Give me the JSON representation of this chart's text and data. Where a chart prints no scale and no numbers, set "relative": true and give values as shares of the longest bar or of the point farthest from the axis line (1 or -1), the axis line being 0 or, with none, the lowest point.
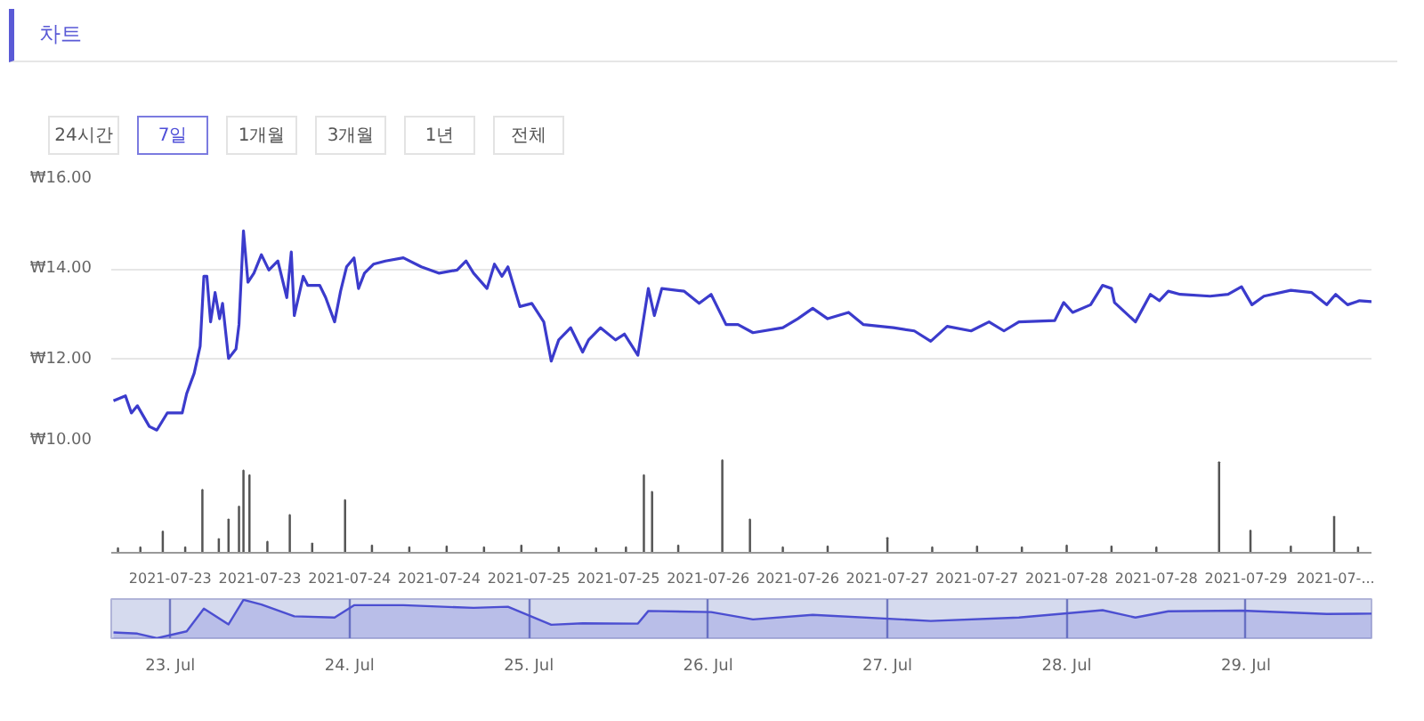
{
  "chart_data": [
    {
      "type": "line",
      "title": "차트",
      "annotations": [
        "24시간",
        "7일",
        "1개월",
        "3개월",
        "1년",
        "전체"
      ],
      "color": "#3b3bcc",
      "line_style": "solid",
      "marker": "none",
      "grid": "y",
      "tick_labels": "y",
      "x": [
        "2021-07-22T16:24",
        "2021-07-22T18:00",
        "2021-07-22T18:48",
        "2021-07-22T19:36",
        "2021-07-22T21:12",
        "2021-07-22T22:12",
        "2021-07-22T23:36",
        "2021-07-23T01:36",
        "2021-07-23T02:12",
        "2021-07-23T03:12",
        "2021-07-23T04:00",
        "2021-07-23T04:30",
        "2021-07-23T04:54",
        "2021-07-23T05:24",
        "2021-07-23T06:00",
        "2021-07-23T06:36",
        "2021-07-23T07:00",
        "2021-07-23T07:48",
        "2021-07-23T08:48",
        "2021-07-23T09:12",
        "2021-07-23T09:48",
        "2021-07-23T10:24",
        "2021-07-23T11:12",
        "2021-07-23T12:12",
        "2021-07-23T13:12",
        "2021-07-23T14:24",
        "2021-07-23T15:36",
        "2021-07-23T16:12",
        "2021-07-23T16:36",
        "2021-07-23T17:48",
        "2021-07-23T18:24",
        "2021-07-23T20:00",
        "2021-07-23T20:48",
        "2021-07-23T22:00",
        "2021-07-23T22:48",
        "2021-07-23T23:36",
        "2021-07-24T00:36",
        "2021-07-24T01:12",
        "2021-07-24T02:00",
        "2021-07-24T03:12",
        "2021-07-24T04:48",
        "2021-07-24T07:12",
        "2021-07-24T09:36",
        "2021-07-24T12:00",
        "2021-07-24T14:24",
        "2021-07-24T15:36",
        "2021-07-24T16:36",
        "2021-07-24T18:24",
        "2021-07-24T19:24",
        "2021-07-24T20:24",
        "2021-07-24T21:12",
        "2021-07-24T22:48",
        "2021-07-25T00:24",
        "2021-07-25T02:00",
        "2021-07-25T03:00",
        "2021-07-25T04:00",
        "2021-07-25T05:36",
        "2021-07-25T07:12",
        "2021-07-25T08:00",
        "2021-07-25T09:36",
        "2021-07-25T11:36",
        "2021-07-25T12:48",
        "2021-07-25T14:36",
        "2021-07-25T16:00",
        "2021-07-25T16:48",
        "2021-07-25T17:48",
        "2021-07-25T20:48",
        "2021-07-25T22:48",
        "2021-07-26T00:24",
        "2021-07-26T02:24",
        "2021-07-26T04:00",
        "2021-07-26T06:00",
        "2021-07-26T10:00",
        "2021-07-26T12:00",
        "2021-07-26T14:00",
        "2021-07-26T16:00",
        "2021-07-26T18:48",
        "2021-07-26T20:48",
        "2021-07-27T00:48",
        "2021-07-27T03:36",
        "2021-07-27T05:48",
        "2021-07-27T08:00",
        "2021-07-27T11:12",
        "2021-07-27T13:36",
        "2021-07-27T15:36",
        "2021-07-27T17:36",
        "2021-07-27T22:24",
        "2021-07-27T23:36",
        "2021-07-28T00:48",
        "2021-07-28T03:12",
        "2021-07-28T04:48",
        "2021-07-28T06:00",
        "2021-07-28T06:24",
        "2021-07-28T09:12",
        "2021-07-28T11:12",
        "2021-07-28T12:24",
        "2021-07-28T13:36",
        "2021-07-28T15:12",
        "2021-07-28T19:12",
        "2021-07-28T21:36",
        "2021-07-28T23:24",
        "2021-07-29T00:48",
        "2021-07-29T02:24",
        "2021-07-29T06:00",
        "2021-07-29T08:48",
        "2021-07-29T10:48",
        "2021-07-29T12:00",
        "2021-07-29T13:36",
        "2021-07-29T15:12",
        "2021-07-29T16:48"
      ],
      "values": [
        11.08,
        11.19,
        10.81,
        10.97,
        10.51,
        10.43,
        10.81,
        10.81,
        11.24,
        11.69,
        12.29,
        13.84,
        13.84,
        12.83,
        13.48,
        12.9,
        13.24,
        12.02,
        12.23,
        12.77,
        14.85,
        13.71,
        13.91,
        14.32,
        13.98,
        14.18,
        13.37,
        14.38,
        12.97,
        13.84,
        13.64,
        13.64,
        13.37,
        12.83,
        13.51,
        14.05,
        14.25,
        13.57,
        13.91,
        14.11,
        14.18,
        14.25,
        14.05,
        13.91,
        13.98,
        14.18,
        13.91,
        13.57,
        14.11,
        13.84,
        14.05,
        13.17,
        13.24,
        12.83,
        11.96,
        12.43,
        12.7,
        12.16,
        12.43,
        12.7,
        12.43,
        12.56,
        12.09,
        13.57,
        12.97,
        13.57,
        13.51,
        13.24,
        13.44,
        12.77,
        12.77,
        12.59,
        12.7,
        12.9,
        13.13,
        12.9,
        13.04,
        12.77,
        12.7,
        12.63,
        12.4,
        12.73,
        12.63,
        12.83,
        12.63,
        12.83,
        12.86,
        13.26,
        13.04,
        13.21,
        13.64,
        13.57,
        13.26,
        12.83,
        13.44,
        13.3,
        13.51,
        13.44,
        13.4,
        13.44,
        13.61,
        13.21,
        13.4,
        13.53,
        13.48,
        13.21,
        13.44,
        13.21,
        13.3,
        13.28
      ],
      "xlim": [
        "2021-07-22T16:06",
        "2021-07-29T16:48"
      ],
      "ylim": [
        10,
        16
      ],
      "yticks": [
        {
          "value": 10,
          "label": "₩10.00"
        },
        {
          "value": 12,
          "label": "₩12.00"
        },
        {
          "value": 14,
          "label": "₩14.00"
        },
        {
          "value": 16,
          "label": "₩16.00"
        }
      ]
    },
    {
      "type": "bar",
      "relative": true,
      "color": "#555555",
      "grid": false,
      "tick_labels": "x",
      "x": [
        "2021-07-22T17:00",
        "2021-07-22T20:00",
        "2021-07-22T23:00",
        "2021-07-23T02:00",
        "2021-07-23T04:18",
        "2021-07-23T06:30",
        "2021-07-23T07:48",
        "2021-07-23T09:12",
        "2021-07-23T09:48",
        "2021-07-23T10:36",
        "2021-07-23T13:00",
        "2021-07-23T16:00",
        "2021-07-23T19:00",
        "2021-07-23T23:24",
        "2021-07-24T03:00",
        "2021-07-24T08:00",
        "2021-07-24T13:00",
        "2021-07-24T18:00",
        "2021-07-24T23:00",
        "2021-07-25T04:00",
        "2021-07-25T09:00",
        "2021-07-25T13:00",
        "2021-07-25T15:24",
        "2021-07-25T16:30",
        "2021-07-25T20:00",
        "2021-07-26T01:54",
        "2021-07-26T05:36",
        "2021-07-26T10:00",
        "2021-07-26T16:00",
        "2021-07-27T00:00",
        "2021-07-27T06:00",
        "2021-07-27T12:00",
        "2021-07-27T18:00",
        "2021-07-28T00:00",
        "2021-07-28T06:00",
        "2021-07-28T12:00",
        "2021-07-28T20:24",
        "2021-07-29T00:36",
        "2021-07-29T06:00",
        "2021-07-29T11:48",
        "2021-07-29T15:00"
      ],
      "values": [
        0.05,
        0.06,
        0.23,
        0.06,
        0.68,
        0.15,
        0.36,
        0.5,
        0.89,
        0.84,
        0.12,
        0.41,
        0.1,
        0.57,
        0.08,
        0.06,
        0.07,
        0.06,
        0.08,
        0.06,
        0.05,
        0.06,
        0.84,
        0.66,
        0.08,
        1,
        0.36,
        0.06,
        0.07,
        0.16,
        0.06,
        0.07,
        0.06,
        0.08,
        0.07,
        0.06,
        0.98,
        0.24,
        0.07,
        0.39,
        0.06
      ],
      "xlim": [
        "2021-07-22T16:06",
        "2021-07-29T16:48"
      ],
      "xticks": [
        {
          "value": "2021-07-23T00:00",
          "label": "2021-07-23"
        },
        {
          "value": "2021-07-23T12:00",
          "label": "2021-07-23"
        },
        {
          "value": "2021-07-24T00:00",
          "label": "2021-07-24"
        },
        {
          "value": "2021-07-24T12:00",
          "label": "2021-07-24"
        },
        {
          "value": "2021-07-25T00:00",
          "label": "2021-07-25"
        },
        {
          "value": "2021-07-25T12:00",
          "label": "2021-07-25"
        },
        {
          "value": "2021-07-26T00:00",
          "label": "2021-07-26"
        },
        {
          "value": "2021-07-26T12:00",
          "label": "2021-07-26"
        },
        {
          "value": "2021-07-27T00:00",
          "label": "2021-07-27"
        },
        {
          "value": "2021-07-27T12:00",
          "label": "2021-07-27"
        },
        {
          "value": "2021-07-28T00:00",
          "label": "2021-07-28"
        },
        {
          "value": "2021-07-28T12:00",
          "label": "2021-07-28"
        },
        {
          "value": "2021-07-29T00:00",
          "label": "2021-07-29"
        },
        {
          "value": "2021-07-29T12:00",
          "label": "2021-07-..."
        }
      ]
    },
    {
      "type": "area",
      "relative": true,
      "color": "#4c4fd1",
      "grid": "x",
      "tick_labels": "x",
      "x": [
        "2021-07-22T16:24",
        "2021-07-22T19:36",
        "2021-07-22T22:12",
        "2021-07-23T02:12",
        "2021-07-23T04:30",
        "2021-07-23T07:48",
        "2021-07-23T09:48",
        "2021-07-23T12:12",
        "2021-07-23T16:36",
        "2021-07-23T22:00",
        "2021-07-24T00:36",
        "2021-07-24T07:12",
        "2021-07-24T16:36",
        "2021-07-24T21:12",
        "2021-07-25T03:00",
        "2021-07-25T07:12",
        "2021-07-25T14:36",
        "2021-07-25T16:00",
        "2021-07-26T00:24",
        "2021-07-26T06:00",
        "2021-07-26T14:00",
        "2021-07-27T05:48",
        "2021-07-27T17:36",
        "2021-07-28T04:48",
        "2021-07-28T09:12",
        "2021-07-28T13:36",
        "2021-07-28T23:24",
        "2021-07-29T10:48",
        "2021-07-29T16:48"
      ],
      "values": [
        0.15,
        0.12,
        0,
        0.18,
        0.77,
        0.36,
        1,
        0.88,
        0.57,
        0.54,
        0.86,
        0.86,
        0.79,
        0.82,
        0.35,
        0.39,
        0.38,
        0.71,
        0.68,
        0.49,
        0.61,
        0.45,
        0.54,
        0.73,
        0.54,
        0.7,
        0.72,
        0.63,
        0.64
      ],
      "xlim": [
        "2021-07-22T16:06",
        "2021-07-29T16:48"
      ],
      "xticks": [
        {
          "value": "2021-07-23",
          "label": "23. Jul"
        },
        {
          "value": "2021-07-24",
          "label": "24. Jul"
        },
        {
          "value": "2021-07-25",
          "label": "25. Jul"
        },
        {
          "value": "2021-07-26",
          "label": "26. Jul"
        },
        {
          "value": "2021-07-27",
          "label": "27. Jul"
        },
        {
          "value": "2021-07-28",
          "label": "28. Jul"
        },
        {
          "value": "2021-07-29",
          "label": "29. Jul"
        }
      ]
    }
  ]
}
